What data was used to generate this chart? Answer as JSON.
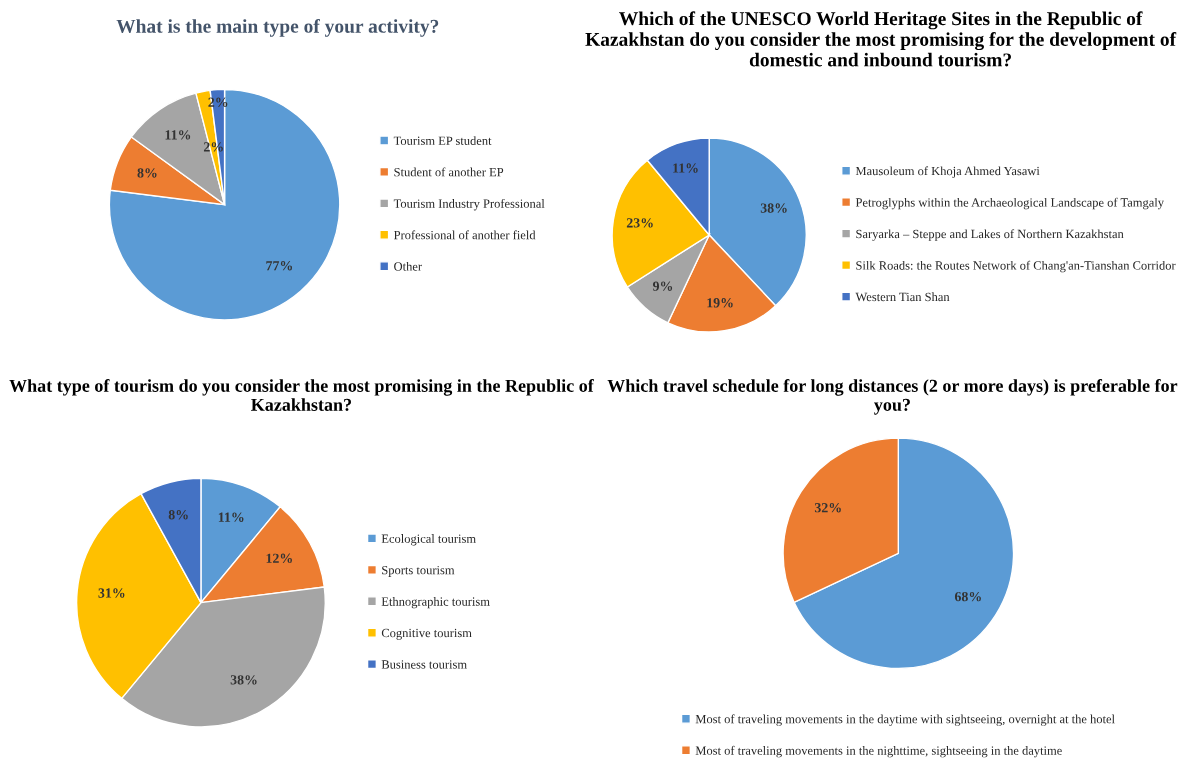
{
  "chart_data": [
    {
      "type": "pie",
      "title": "What is the main type of your activity?",
      "categories": [
        "Tourism EP student",
        "Student of another EP",
        "Tourism Industry Professional",
        "Professional of another field",
        "Other"
      ],
      "values": [
        77,
        8,
        11,
        2,
        2
      ],
      "colors": [
        "#5b9bd5",
        "#ed7d31",
        "#a5a5a5",
        "#ffc000",
        "#4472c4"
      ],
      "value_labels": [
        "77%",
        "8%",
        "11%",
        "2%",
        "2%"
      ],
      "legend": "right"
    },
    {
      "type": "pie",
      "title": "Which of the UNESCO World Heritage Sites in the Republic of Kazakhstan do you consider the most promising for the development of domestic and inbound tourism?",
      "categories": [
        "Mausoleum of Khoja Ahmed Yasawi",
        "Petroglyphs within the Archaeological Landscape of Tamgaly",
        "Saryarka – Steppe and Lakes of Northern Kazakhstan",
        "Silk Roads: the Routes Network of Chang'an-Tianshan Corridor",
        "Western Tian Shan"
      ],
      "values": [
        38,
        19,
        9,
        23,
        11
      ],
      "colors": [
        "#5b9bd5",
        "#ed7d31",
        "#a5a5a5",
        "#ffc000",
        "#4472c4"
      ],
      "value_labels": [
        "38%",
        "19%",
        "9%",
        "23%",
        "11%"
      ],
      "legend": "right"
    },
    {
      "type": "pie",
      "title": "What type of tourism do you consider the most promising in the Republic of Kazakhstan?",
      "categories": [
        "Ecological tourism",
        "Sports tourism",
        "Ethnographic tourism",
        "Cognitive tourism",
        "Business tourism"
      ],
      "values": [
        11,
        12,
        38,
        31,
        8
      ],
      "colors": [
        "#5b9bd5",
        "#ed7d31",
        "#a5a5a5",
        "#ffc000",
        "#4472c4"
      ],
      "value_labels": [
        "11%",
        "12%",
        "38%",
        "31%",
        "8%"
      ],
      "legend": "right"
    },
    {
      "type": "pie",
      "title": "Which travel schedule for long distances (2 or more days) is preferable for you?",
      "categories": [
        "Most of traveling movements in the daytime with sightseeing, overnight at the hotel",
        "Most of traveling movements in the nighttime, sightseeing in the daytime"
      ],
      "values": [
        68,
        32
      ],
      "colors": [
        "#5b9bd5",
        "#ed7d31"
      ],
      "value_labels": [
        "68%",
        "32%"
      ],
      "legend": "bottom"
    }
  ]
}
